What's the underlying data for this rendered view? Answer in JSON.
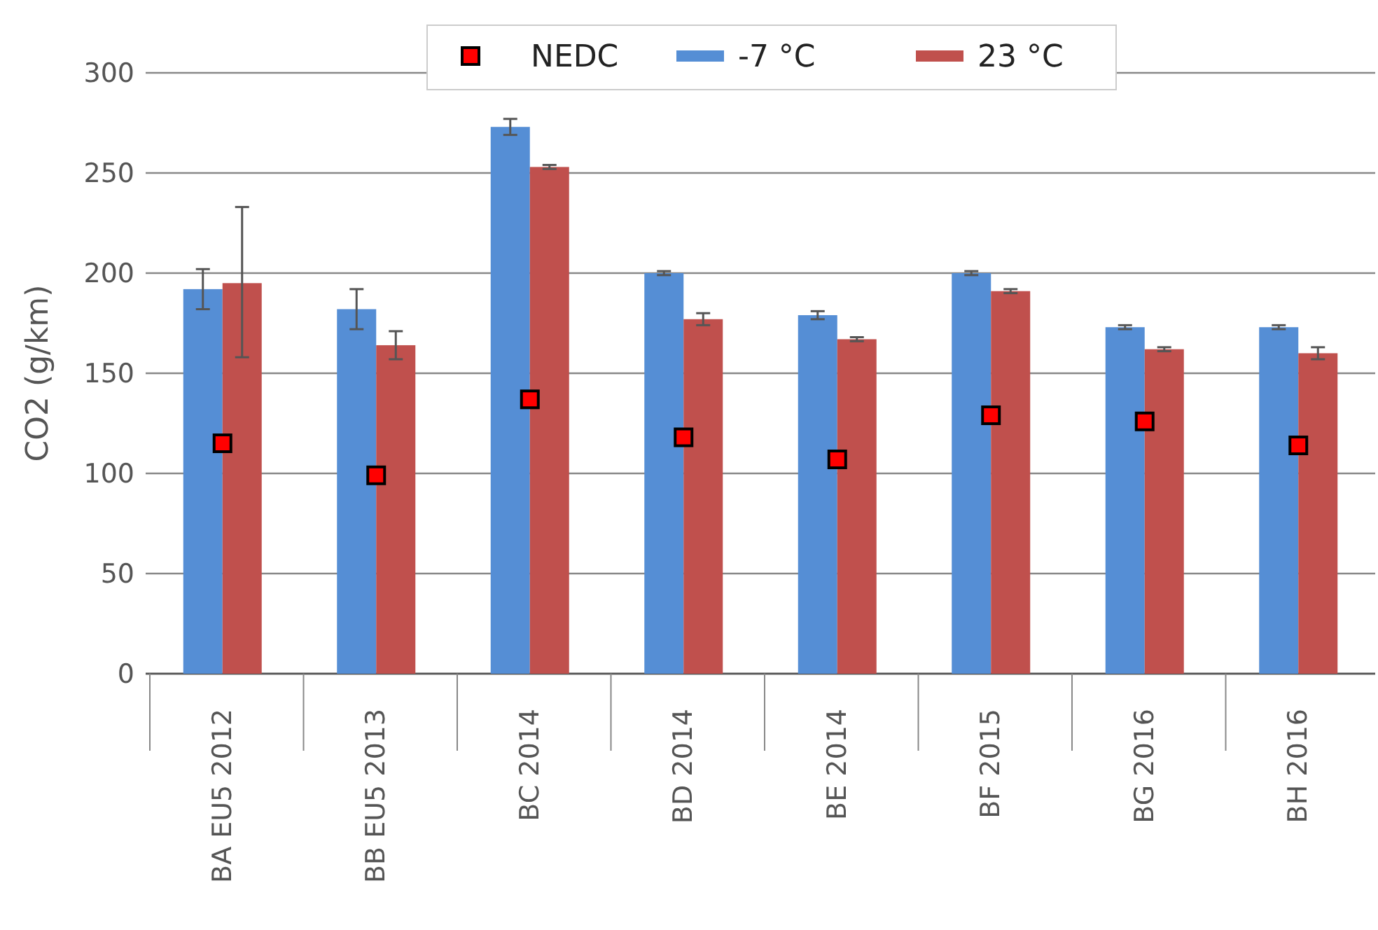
{
  "chart_data": {
    "type": "bar",
    "ylabel": "CO2 (g/km)",
    "categories": [
      "BA EU5 2012",
      "BB EU5 2013",
      "BC 2014",
      "BD 2014",
      "BE 2014",
      "BF 2015",
      "BG 2016",
      "BH 2016"
    ],
    "series": [
      {
        "name": "NEDC",
        "type": "scatter",
        "marker": "square",
        "color": "#ff0000",
        "x": [
          "BA EU5 2012",
          "BB EU5 2013",
          "BC 2014",
          "BD 2014",
          "BE 2014",
          "BF 2015",
          "BG 2016",
          "BH 2016"
        ],
        "values": [
          115,
          99,
          137,
          118,
          107,
          129,
          126,
          114
        ]
      },
      {
        "name": "-7 °C",
        "color": "#558ed5",
        "values": [
          192,
          182,
          273,
          200,
          179,
          200,
          173,
          173
        ],
        "errors": [
          10,
          10,
          4,
          1,
          2,
          1,
          1,
          1
        ]
      },
      {
        "name": "23 °C",
        "color": "#c0504d",
        "values": [
          195,
          164,
          253,
          177,
          167,
          191,
          162,
          160
        ],
        "errors": [
          [
            158,
            233
          ],
          7,
          1,
          3,
          1,
          1,
          1,
          3
        ]
      }
    ],
    "ylim": [
      0,
      300
    ],
    "yticks": [
      0,
      50,
      100,
      150,
      200,
      250,
      300
    ],
    "grid": "y",
    "legend": "top"
  }
}
